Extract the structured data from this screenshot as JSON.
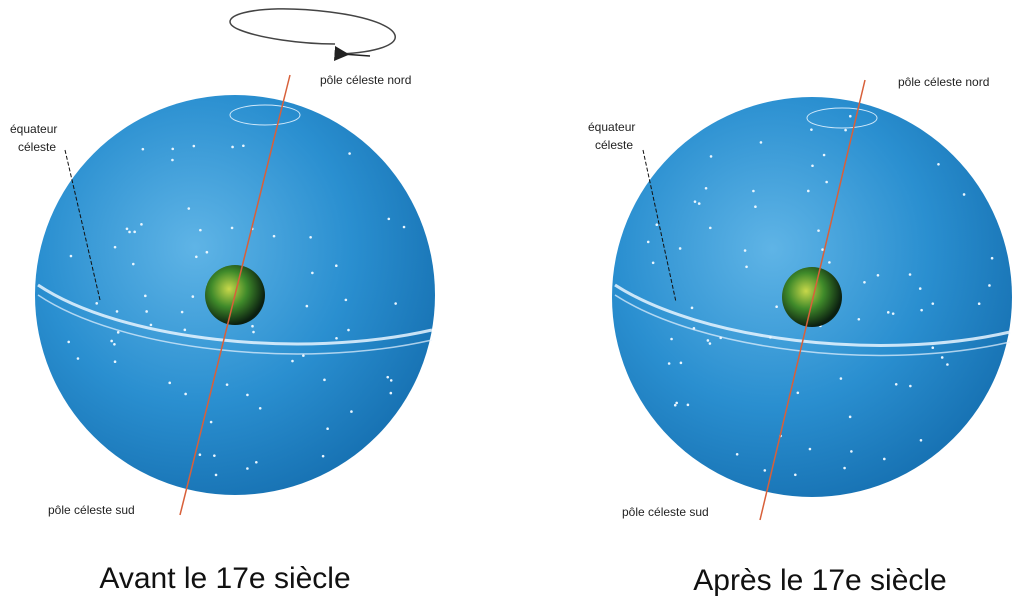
{
  "panels": [
    {
      "north_label": "pôle céleste nord",
      "equator_label": [
        "équateur",
        "céleste"
      ],
      "south_label": "pôle céleste sud",
      "caption": "Avant le 17e siècle"
    },
    {
      "north_label": "pôle céleste nord",
      "equator_label": [
        "équateur",
        "céleste"
      ],
      "south_label": "pôle céleste sud",
      "caption": "Après le 17e siècle"
    }
  ]
}
